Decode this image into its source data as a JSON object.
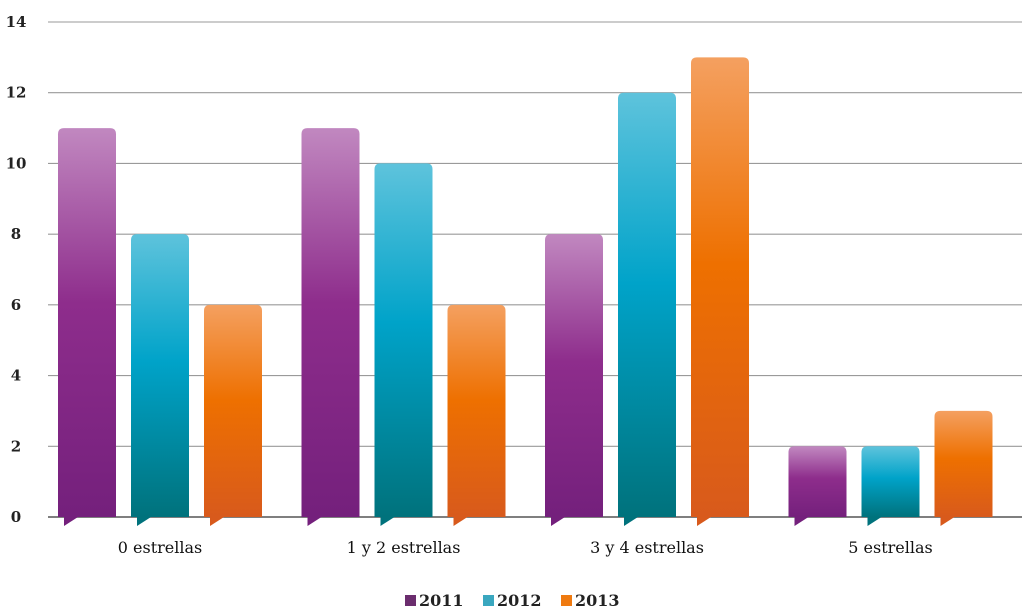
{
  "chart_data": {
    "type": "bar",
    "categories": [
      "0 estrellas",
      "1 y 2 estrellas",
      "3 y 4 estrellas",
      "5 estrellas"
    ],
    "series": [
      {
        "name": "2011",
        "values": [
          11,
          11,
          8,
          2
        ]
      },
      {
        "name": "2012",
        "values": [
          8,
          10,
          12,
          2
        ]
      },
      {
        "name": "2013",
        "values": [
          6,
          6,
          13,
          3
        ]
      }
    ],
    "title": "",
    "xlabel": "",
    "ylabel": "",
    "ylim": [
      0,
      14
    ],
    "yticks": [
      "0",
      "2",
      "4",
      "6",
      "8",
      "10",
      "12",
      "14"
    ],
    "grid": true,
    "legend_position": "bottom-center",
    "colors": {
      "2011": {
        "top": "#c188c0",
        "mid": "#8e2d8c",
        "bottom": "#74207c",
        "legend": "#6b2d6e"
      },
      "2012": {
        "top": "#5ec3dc",
        "mid": "#00a3c9",
        "bottom": "#00727c",
        "legend": "#3aa7bf"
      },
      "2013": {
        "top": "#f4a060",
        "mid": "#ee7000",
        "bottom": "#d85a1c",
        "legend": "#ef7a10"
      }
    }
  }
}
